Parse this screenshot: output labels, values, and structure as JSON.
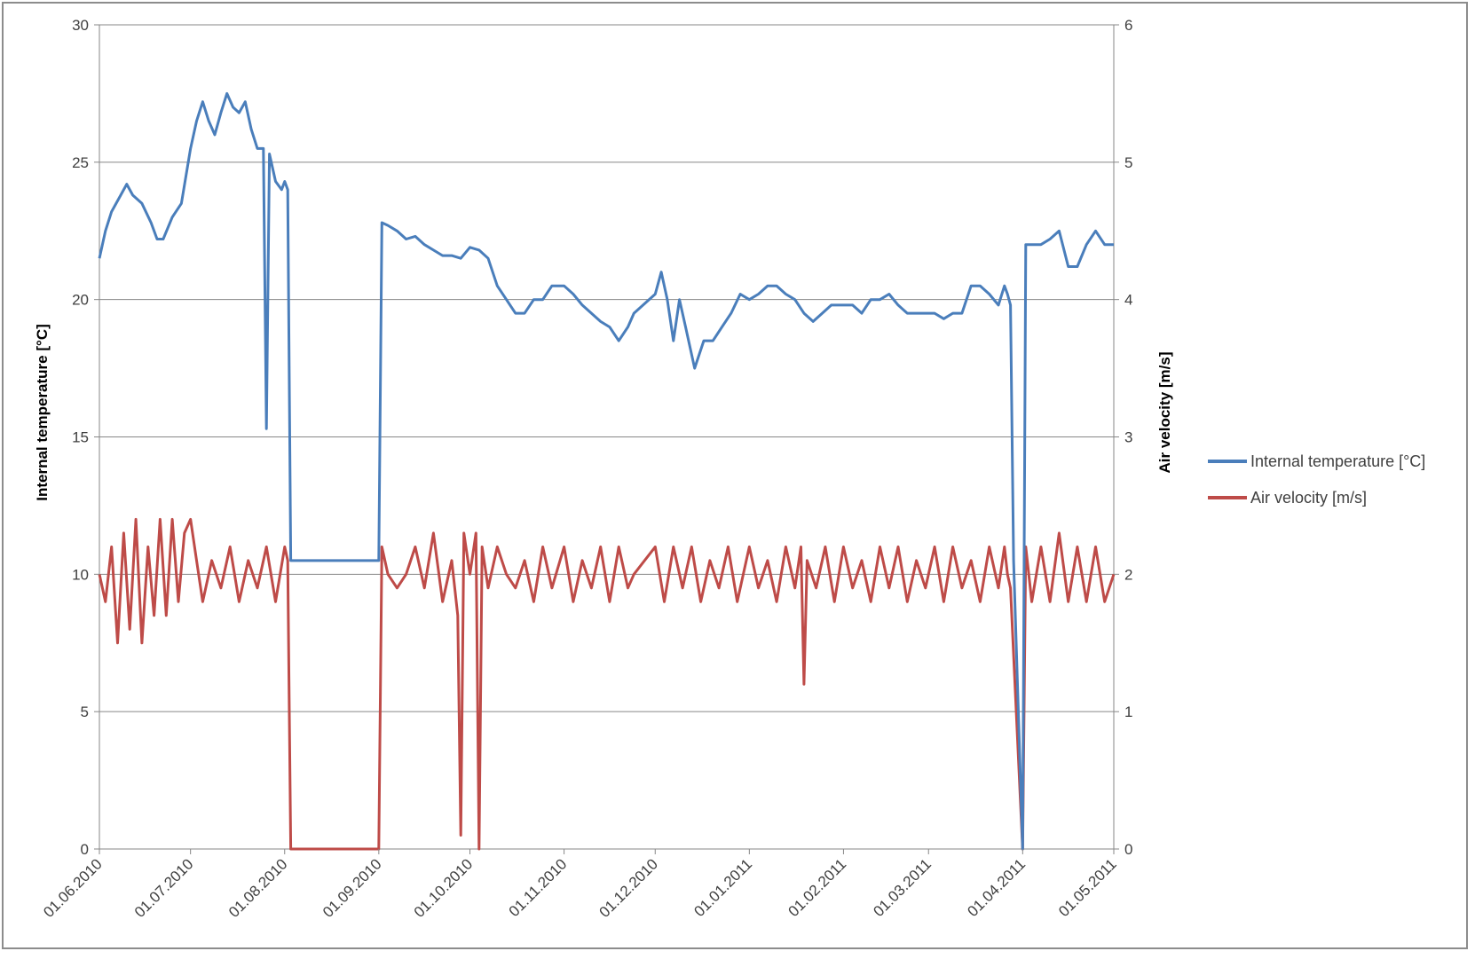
{
  "chart_data": {
    "type": "line",
    "title": "",
    "xlabel": "",
    "ylabel": "Internal temperature [°C]",
    "y2label": "Air velocity [m/s]",
    "ylim": [
      0,
      30
    ],
    "y2lim": [
      0,
      6
    ],
    "y_ticks": [
      "0",
      "5",
      "10",
      "15",
      "20",
      "25",
      "30"
    ],
    "y2_ticks": [
      "0",
      "1",
      "2",
      "3",
      "4",
      "5",
      "6"
    ],
    "x_range": [
      "2010-06-01",
      "2011-05-01"
    ],
    "x_ticks": [
      "01.06.2010",
      "01.07.2010",
      "01.08.2010",
      "01.09.2010",
      "01.10.2010",
      "01.11.2010",
      "01.12.2010",
      "01.01.2011",
      "01.02.2011",
      "01.03.2011",
      "01.04.2011",
      "01.05.2011"
    ],
    "x_tick_dates": [
      "2010-06-01",
      "2010-07-01",
      "2010-08-01",
      "2010-09-01",
      "2010-10-01",
      "2010-11-01",
      "2010-12-01",
      "2011-01-01",
      "2011-02-01",
      "2011-03-01",
      "2011-04-01",
      "2011-05-01"
    ],
    "grid": "horizontal",
    "legend_position": "right",
    "series": [
      {
        "name": "Internal temperature [°C]",
        "axis": "left",
        "color": "#4a7ebb",
        "x": [
          "2010-06-01",
          "2010-06-03",
          "2010-06-05",
          "2010-06-08",
          "2010-06-10",
          "2010-06-12",
          "2010-06-15",
          "2010-06-18",
          "2010-06-20",
          "2010-06-22",
          "2010-06-25",
          "2010-06-28",
          "2010-07-01",
          "2010-07-03",
          "2010-07-05",
          "2010-07-07",
          "2010-07-09",
          "2010-07-11",
          "2010-07-13",
          "2010-07-15",
          "2010-07-17",
          "2010-07-19",
          "2010-07-21",
          "2010-07-23",
          "2010-07-25",
          "2010-07-26",
          "2010-07-27",
          "2010-07-29",
          "2010-07-31",
          "2010-08-01",
          "2010-08-02",
          "2010-08-03",
          "2010-09-01",
          "2010-09-02",
          "2010-09-04",
          "2010-09-07",
          "2010-09-10",
          "2010-09-13",
          "2010-09-16",
          "2010-09-19",
          "2010-09-22",
          "2010-09-25",
          "2010-09-28",
          "2010-10-01",
          "2010-10-04",
          "2010-10-07",
          "2010-10-10",
          "2010-10-13",
          "2010-10-16",
          "2010-10-19",
          "2010-10-22",
          "2010-10-25",
          "2010-10-28",
          "2010-11-01",
          "2010-11-04",
          "2010-11-07",
          "2010-11-10",
          "2010-11-13",
          "2010-11-16",
          "2010-11-19",
          "2010-11-22",
          "2010-11-24",
          "2010-12-01",
          "2010-12-03",
          "2010-12-05",
          "2010-12-07",
          "2010-12-09",
          "2010-12-11",
          "2010-12-14",
          "2010-12-17",
          "2010-12-20",
          "2010-12-23",
          "2010-12-26",
          "2010-12-29",
          "2011-01-01",
          "2011-01-04",
          "2011-01-07",
          "2011-01-10",
          "2011-01-13",
          "2011-01-16",
          "2011-01-19",
          "2011-01-22",
          "2011-01-25",
          "2011-01-28",
          "2011-02-01",
          "2011-02-04",
          "2011-02-07",
          "2011-02-10",
          "2011-02-13",
          "2011-02-16",
          "2011-02-19",
          "2011-02-22",
          "2011-02-25",
          "2011-02-28",
          "2011-03-03",
          "2011-03-06",
          "2011-03-09",
          "2011-03-12",
          "2011-03-15",
          "2011-03-18",
          "2011-03-21",
          "2011-03-24",
          "2011-03-26",
          "2011-03-27",
          "2011-03-28",
          "2011-03-29",
          "2011-04-01",
          "2011-04-02",
          "2011-04-04",
          "2011-04-07",
          "2011-04-10",
          "2011-04-13",
          "2011-04-16",
          "2011-04-19",
          "2011-04-22",
          "2011-04-25",
          "2011-04-28",
          "2011-05-01"
        ],
        "values": [
          21.5,
          22.5,
          23.2,
          23.8,
          24.2,
          23.8,
          23.5,
          22.8,
          22.2,
          22.2,
          23,
          23.5,
          25.5,
          26.5,
          27.2,
          26.5,
          26,
          26.8,
          27.5,
          27,
          26.8,
          27.2,
          26.2,
          25.5,
          25.5,
          15.3,
          25.3,
          24.3,
          24,
          24.3,
          24,
          10.5,
          10.5,
          22.8,
          22.7,
          22.5,
          22.2,
          22.3,
          22,
          21.8,
          21.6,
          21.6,
          21.5,
          21.9,
          21.8,
          21.5,
          20.5,
          20,
          19.5,
          19.5,
          20,
          20,
          20.5,
          20.5,
          20.2,
          19.8,
          19.5,
          19.2,
          19,
          18.5,
          19,
          19.5,
          20.2,
          21,
          20,
          18.5,
          20,
          19,
          17.5,
          18.5,
          18.5,
          19,
          19.5,
          20.2,
          20,
          20.2,
          20.5,
          20.5,
          20.2,
          20,
          19.5,
          19.2,
          19.5,
          19.8,
          19.8,
          19.8,
          19.5,
          20,
          20,
          20.2,
          19.8,
          19.5,
          19.5,
          19.5,
          19.5,
          19.3,
          19.5,
          19.5,
          20.5,
          20.5,
          20.2,
          19.8,
          20.5,
          20.2,
          19.8,
          10.5,
          0,
          22,
          22,
          22,
          22.2,
          22.5,
          21.2,
          21.2,
          22,
          22.5,
          22,
          22
        ]
      },
      {
        "name": "Air velocity [m/s]",
        "axis": "right",
        "color": "#be4b48",
        "x": [
          "2010-06-01",
          "2010-06-03",
          "2010-06-05",
          "2010-06-07",
          "2010-06-09",
          "2010-06-11",
          "2010-06-13",
          "2010-06-15",
          "2010-06-17",
          "2010-06-19",
          "2010-06-21",
          "2010-06-23",
          "2010-06-25",
          "2010-06-27",
          "2010-06-29",
          "2010-07-01",
          "2010-07-03",
          "2010-07-05",
          "2010-07-08",
          "2010-07-11",
          "2010-07-14",
          "2010-07-17",
          "2010-07-20",
          "2010-07-23",
          "2010-07-26",
          "2010-07-29",
          "2010-08-01",
          "2010-08-02",
          "2010-08-03",
          "2010-09-01",
          "2010-09-02",
          "2010-09-04",
          "2010-09-07",
          "2010-09-10",
          "2010-09-13",
          "2010-09-16",
          "2010-09-19",
          "2010-09-22",
          "2010-09-25",
          "2010-09-27",
          "2010-09-28",
          "2010-09-29",
          "2010-10-01",
          "2010-10-03",
          "2010-10-04",
          "2010-10-05",
          "2010-10-07",
          "2010-10-10",
          "2010-10-13",
          "2010-10-16",
          "2010-10-19",
          "2010-10-22",
          "2010-10-25",
          "2010-10-28",
          "2010-11-01",
          "2010-11-04",
          "2010-11-07",
          "2010-11-10",
          "2010-11-13",
          "2010-11-16",
          "2010-11-19",
          "2010-11-22",
          "2010-11-24",
          "2010-12-01",
          "2010-12-04",
          "2010-12-07",
          "2010-12-10",
          "2010-12-13",
          "2010-12-16",
          "2010-12-19",
          "2010-12-22",
          "2010-12-25",
          "2010-12-28",
          "2011-01-01",
          "2011-01-04",
          "2011-01-07",
          "2011-01-10",
          "2011-01-13",
          "2011-01-16",
          "2011-01-18",
          "2011-01-19",
          "2011-01-20",
          "2011-01-23",
          "2011-01-26",
          "2011-01-29",
          "2011-02-01",
          "2011-02-04",
          "2011-02-07",
          "2011-02-10",
          "2011-02-13",
          "2011-02-16",
          "2011-02-19",
          "2011-02-22",
          "2011-02-25",
          "2011-02-28",
          "2011-03-03",
          "2011-03-06",
          "2011-03-09",
          "2011-03-12",
          "2011-03-15",
          "2011-03-18",
          "2011-03-21",
          "2011-03-24",
          "2011-03-26",
          "2011-03-27",
          "2011-03-28",
          "2011-04-01",
          "2011-04-02",
          "2011-04-04",
          "2011-04-07",
          "2011-04-10",
          "2011-04-13",
          "2011-04-16",
          "2011-04-19",
          "2011-04-22",
          "2011-04-25",
          "2011-04-28",
          "2011-05-01"
        ],
        "values": [
          2,
          1.8,
          2.2,
          1.5,
          2.3,
          1.6,
          2.4,
          1.5,
          2.2,
          1.7,
          2.4,
          1.7,
          2.4,
          1.8,
          2.3,
          2.4,
          2.1,
          1.8,
          2.1,
          1.9,
          2.2,
          1.8,
          2.1,
          1.9,
          2.2,
          1.8,
          2.2,
          2.1,
          0,
          0,
          2.2,
          2,
          1.9,
          2,
          2.2,
          1.9,
          2.3,
          1.8,
          2.1,
          1.7,
          0.1,
          2.3,
          2,
          2.3,
          0,
          2.2,
          1.9,
          2.2,
          2,
          1.9,
          2.1,
          1.8,
          2.2,
          1.9,
          2.2,
          1.8,
          2.1,
          1.9,
          2.2,
          1.8,
          2.2,
          1.9,
          2,
          2.2,
          1.8,
          2.2,
          1.9,
          2.2,
          1.8,
          2.1,
          1.9,
          2.2,
          1.8,
          2.2,
          1.9,
          2.1,
          1.8,
          2.2,
          1.9,
          2.2,
          1.2,
          2.1,
          1.9,
          2.2,
          1.8,
          2.2,
          1.9,
          2.1,
          1.8,
          2.2,
          1.9,
          2.2,
          1.8,
          2.1,
          1.9,
          2.2,
          1.8,
          2.2,
          1.9,
          2.1,
          1.8,
          2.2,
          1.9,
          2.2,
          2,
          1.9,
          0,
          2.2,
          1.8,
          2.2,
          1.8,
          2.3,
          1.8,
          2.2,
          1.8,
          2.2,
          1.8,
          2
        ]
      }
    ]
  }
}
